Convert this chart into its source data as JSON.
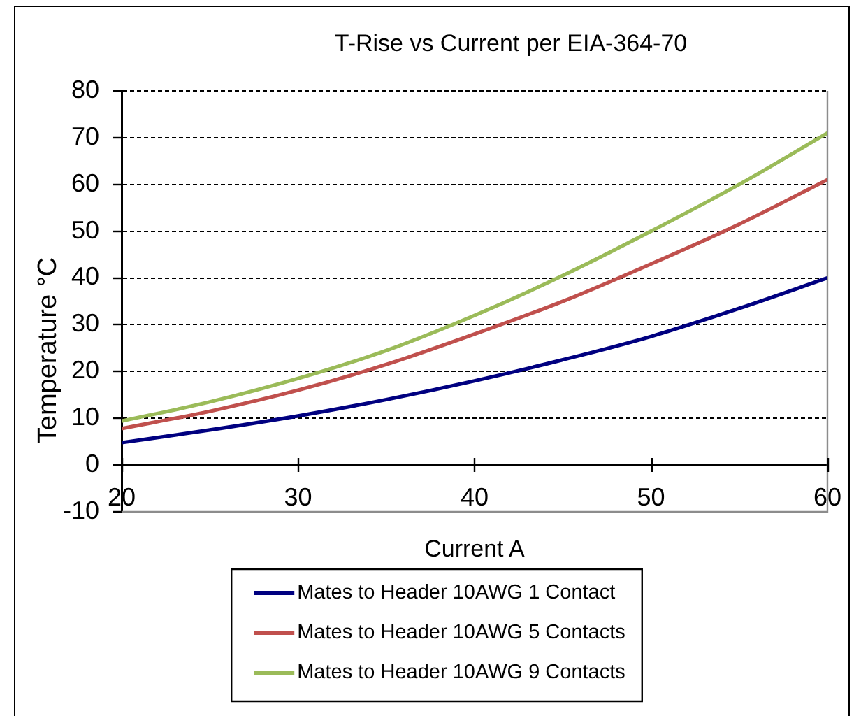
{
  "chart_data": {
    "type": "line",
    "title": "T-Rise vs Current per EIA-364-70",
    "xlabel": "Current A",
    "ylabel": "Temperature °C",
    "x": [
      20,
      25,
      30,
      35,
      40,
      45,
      50,
      55,
      60
    ],
    "series": [
      {
        "name": "Mates to Header 10AWG 1 Contact",
        "color": "#000080",
        "values": [
          4.8,
          7.5,
          10.5,
          14,
          18,
          22.5,
          27.5,
          33.5,
          40
        ]
      },
      {
        "name": "Mates to Header 10AWG 5 Contacts",
        "color": "#c0504d",
        "values": [
          7.8,
          11.5,
          16,
          21.5,
          28,
          35,
          43,
          51.5,
          61
        ]
      },
      {
        "name": "Mates to Header 10AWG 9 Contacts",
        "color": "#9bbb59",
        "values": [
          9.4,
          13.5,
          18.5,
          24.5,
          32,
          40.5,
          50,
          60,
          71
        ]
      }
    ],
    "xlim": [
      20,
      60
    ],
    "xticks": [
      20,
      30,
      40,
      50,
      60
    ],
    "ylim": [
      -10,
      80
    ],
    "yticks": [
      -10,
      0,
      10,
      20,
      30,
      40,
      50,
      60,
      70,
      80
    ],
    "grid": "y",
    "legend": "bottom",
    "marker": "none",
    "line_style": "solid"
  }
}
